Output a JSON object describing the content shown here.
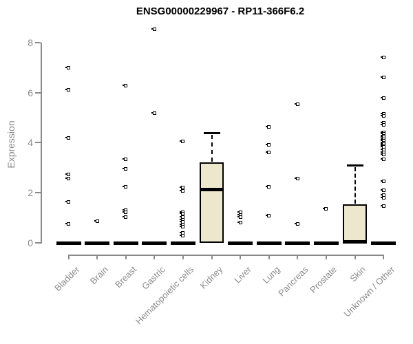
{
  "title": "ENSG00000229967 - RP11-366F6.2",
  "colors": {
    "box_fill": "#EDE7CD",
    "box_border": "#000000",
    "axis": "#8B8B8B",
    "tick_label": "#8B8B8B",
    "title": "#000000",
    "background": "#FFFFFF"
  },
  "chart_data": {
    "type": "boxplot",
    "title": "ENSG00000229967 - RP11-366F6.2",
    "xlabel": "",
    "ylabel": "Expression",
    "ylim": [
      0,
      8.6
    ],
    "yticks": [
      0,
      2,
      4,
      6,
      8
    ],
    "grid": false,
    "legend": "none",
    "categories": [
      "Bladder",
      "Brain",
      "Breast",
      "Gastric",
      "Hematopoietic cells",
      "Kidney",
      "Liver",
      "Lung",
      "Pancreas",
      "Prostate",
      "Skin",
      "Unknown / Other"
    ],
    "series": [
      {
        "name": "Bladder",
        "q1": 0,
        "median": 0,
        "q3": 0,
        "whisker_low": 0,
        "whisker_high": 0,
        "outliers": [
          6.98,
          6.11,
          4.18,
          2.72,
          2.56,
          1.64,
          0.75
        ]
      },
      {
        "name": "Brain",
        "q1": 0,
        "median": 0,
        "q3": 0,
        "whisker_low": 0,
        "whisker_high": 0,
        "outliers": [
          0.87
        ]
      },
      {
        "name": "Breast",
        "q1": 0,
        "median": 0,
        "q3": 0,
        "whisker_low": 0,
        "whisker_high": 0,
        "outliers": [
          6.29,
          3.33,
          2.96,
          2.23,
          1.3,
          1.21,
          1.03
        ]
      },
      {
        "name": "Gastric",
        "q1": 0,
        "median": 0,
        "q3": 0,
        "whisker_low": 0,
        "whisker_high": 0,
        "outliers": [
          8.54,
          5.19
        ]
      },
      {
        "name": "Hematopoietic cells",
        "q1": 0,
        "median": 0,
        "q3": 0,
        "whisker_low": 0,
        "whisker_high": 0,
        "outliers": [
          4.06,
          2.21,
          2.07,
          1.23,
          1.16,
          1.02,
          0.93,
          0.84,
          0.73,
          0.64,
          0.4,
          0.29
        ]
      },
      {
        "name": "Kidney",
        "q1": 0,
        "median": 2.14,
        "q3": 3.22,
        "whisker_low": 0,
        "whisker_high": 4.4,
        "outliers": []
      },
      {
        "name": "Liver",
        "q1": 0,
        "median": 0,
        "q3": 0,
        "whisker_low": 0,
        "whisker_high": 0,
        "outliers": [
          1.22,
          1.12,
          1.03,
          0.82
        ]
      },
      {
        "name": "Lung",
        "q1": 0,
        "median": 0,
        "q3": 0,
        "whisker_low": 0,
        "whisker_high": 0,
        "outliers": [
          4.63,
          3.92,
          3.6,
          2.23,
          1.09
        ]
      },
      {
        "name": "Pancreas",
        "q1": 0,
        "median": 0,
        "q3": 0,
        "whisker_low": 0,
        "whisker_high": 0,
        "outliers": [
          5.54,
          2.57,
          0.76
        ]
      },
      {
        "name": "Prostate",
        "q1": 0,
        "median": 0,
        "q3": 0,
        "whisker_low": 0,
        "whisker_high": 0,
        "outliers": [
          1.36
        ]
      },
      {
        "name": "Skin",
        "q1": 0,
        "median": 0,
        "q3": 1.55,
        "whisker_low": 0,
        "whisker_high": 3.1,
        "outliers": []
      },
      {
        "name": "Unknown / Other",
        "q1": 0,
        "median": 0,
        "q3": 0,
        "whisker_low": 0,
        "whisker_high": 0,
        "outliers": [
          7.4,
          6.62,
          5.78,
          5.15,
          5.06,
          4.8,
          4.72,
          4.42,
          4.35,
          4.28,
          4.21,
          4.14,
          4.07,
          4.0,
          3.94,
          3.88,
          3.82,
          3.71,
          3.6,
          3.52,
          3.33,
          2.46,
          2.11,
          1.92,
          1.8,
          1.46
        ]
      }
    ]
  }
}
